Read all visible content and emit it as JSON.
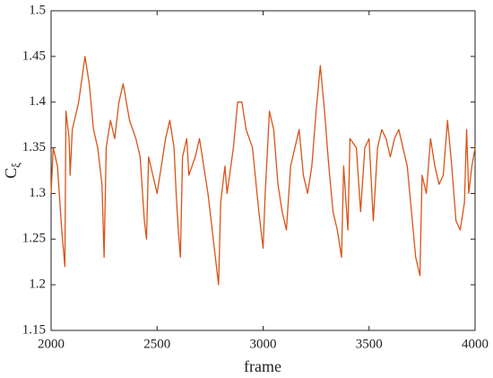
{
  "chart_data": {
    "type": "line",
    "xlabel": "frame",
    "ylabel": {
      "main": "C",
      "sub": "ξ"
    },
    "xlim": [
      2000,
      4000
    ],
    "xticks": [
      2000,
      2500,
      3000,
      3500,
      4000
    ],
    "ylim": [
      1.15,
      1.5
    ],
    "yticks": [
      1.15,
      1.2,
      1.25,
      1.3,
      1.35,
      1.4,
      1.45,
      1.5
    ],
    "grid": false,
    "series": [
      {
        "color": "#d95319",
        "x": [
          2000,
          2010,
          2030,
          2050,
          2065,
          2070,
          2085,
          2090,
          2100,
          2130,
          2160,
          2180,
          2200,
          2220,
          2240,
          2250,
          2260,
          2280,
          2300,
          2320,
          2340,
          2370,
          2400,
          2420,
          2440,
          2450,
          2460,
          2480,
          2500,
          2520,
          2540,
          2560,
          2580,
          2590,
          2600,
          2610,
          2620,
          2640,
          2650,
          2680,
          2700,
          2720,
          2740,
          2760,
          2780,
          2790,
          2800,
          2820,
          2830,
          2860,
          2880,
          2900,
          2920,
          2950,
          2980,
          3000,
          3010,
          3030,
          3050,
          3070,
          3090,
          3110,
          3130,
          3150,
          3170,
          3190,
          3210,
          3230,
          3250,
          3270,
          3290,
          3310,
          3330,
          3350,
          3370,
          3380,
          3400,
          3410,
          3440,
          3460,
          3480,
          3500,
          3520,
          3540,
          3560,
          3580,
          3600,
          3620,
          3640,
          3660,
          3680,
          3700,
          3720,
          3740,
          3750,
          3770,
          3790,
          3810,
          3830,
          3850,
          3870,
          3890,
          3910,
          3930,
          3950,
          3960,
          3970,
          3985,
          4000
        ],
        "values": [
          1.3,
          1.35,
          1.33,
          1.26,
          1.22,
          1.39,
          1.36,
          1.32,
          1.37,
          1.4,
          1.45,
          1.42,
          1.37,
          1.35,
          1.31,
          1.23,
          1.35,
          1.38,
          1.36,
          1.4,
          1.42,
          1.38,
          1.36,
          1.34,
          1.27,
          1.25,
          1.34,
          1.32,
          1.3,
          1.33,
          1.36,
          1.38,
          1.35,
          1.3,
          1.26,
          1.23,
          1.34,
          1.36,
          1.32,
          1.34,
          1.36,
          1.33,
          1.3,
          1.26,
          1.22,
          1.2,
          1.29,
          1.33,
          1.3,
          1.35,
          1.4,
          1.4,
          1.37,
          1.35,
          1.28,
          1.24,
          1.3,
          1.39,
          1.37,
          1.31,
          1.28,
          1.26,
          1.33,
          1.35,
          1.37,
          1.32,
          1.3,
          1.33,
          1.39,
          1.44,
          1.39,
          1.33,
          1.28,
          1.26,
          1.23,
          1.33,
          1.26,
          1.36,
          1.35,
          1.28,
          1.35,
          1.36,
          1.27,
          1.35,
          1.37,
          1.36,
          1.34,
          1.36,
          1.37,
          1.35,
          1.33,
          1.28,
          1.23,
          1.21,
          1.32,
          1.3,
          1.36,
          1.33,
          1.31,
          1.32,
          1.38,
          1.33,
          1.27,
          1.26,
          1.29,
          1.37,
          1.3,
          1.33,
          1.35
        ]
      }
    ]
  }
}
